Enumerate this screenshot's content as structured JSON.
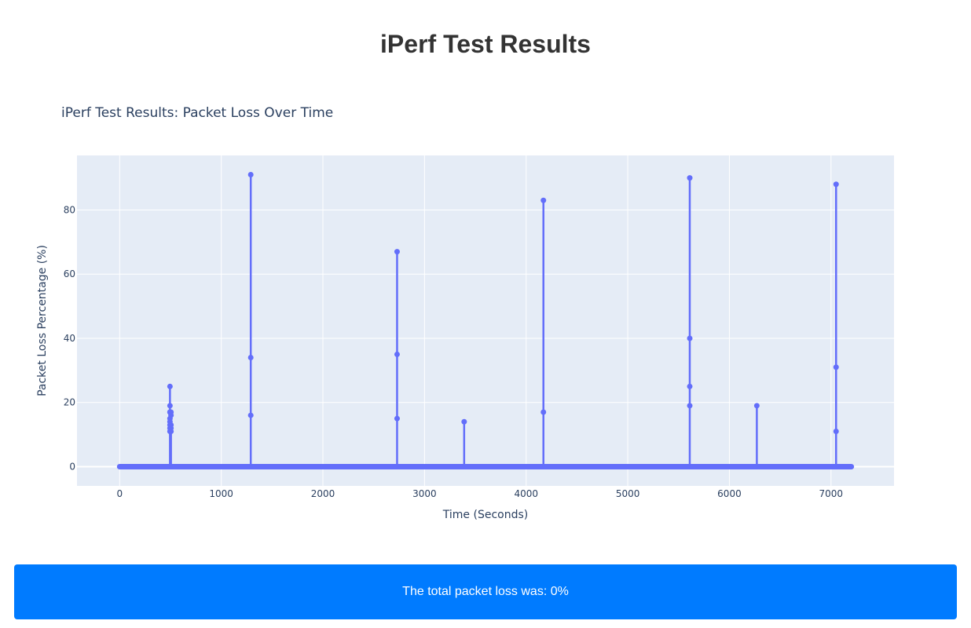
{
  "page": {
    "title": "iPerf Test Results",
    "summary": "The total packet loss was: 0%"
  },
  "colors": {
    "series": "#636efa",
    "plot_bg": "#e5ecf6",
    "grid": "#ffffff",
    "summary_bg": "#007bff"
  },
  "chart_data": {
    "type": "line",
    "title": "iPerf Test Results: Packet Loss Over Time",
    "xlabel": "Time (Seconds)",
    "ylabel": "Packet Loss Percentage (%)",
    "xlim": [
      -420,
      7620
    ],
    "ylim": [
      -6,
      97
    ],
    "x_ticks": [
      0,
      1000,
      2000,
      3000,
      4000,
      5000,
      6000,
      7000
    ],
    "y_ticks": [
      0,
      20,
      40,
      60,
      80
    ],
    "grid": true,
    "legend": "none",
    "x_range_covered": [
      0,
      7200
    ],
    "series": [
      {
        "values_note_omitted": null,
        "spikes": [
          {
            "x": 495,
            "values": [
              0,
              11,
              13,
              15,
              17,
              19,
              25,
              17,
              14,
              12,
              0
            ]
          },
          {
            "x": 505,
            "values": [
              0,
              12,
              13,
              16,
              17,
              11,
              0
            ]
          },
          {
            "x": 1290,
            "values": [
              0,
              16,
              34,
              91,
              0
            ]
          },
          {
            "x": 2730,
            "values": [
              0,
              15,
              35,
              67,
              0
            ]
          },
          {
            "x": 3390,
            "values": [
              14,
              0
            ]
          },
          {
            "x": 4170,
            "values": [
              0,
              17,
              83,
              0
            ]
          },
          {
            "x": 5610,
            "values": [
              0,
              19,
              25,
              40,
              90,
              0
            ]
          },
          {
            "x": 6270,
            "values": [
              19,
              0
            ]
          },
          {
            "x": 7050,
            "values": [
              0,
              11,
              31,
              88,
              0
            ]
          }
        ]
      }
    ]
  }
}
